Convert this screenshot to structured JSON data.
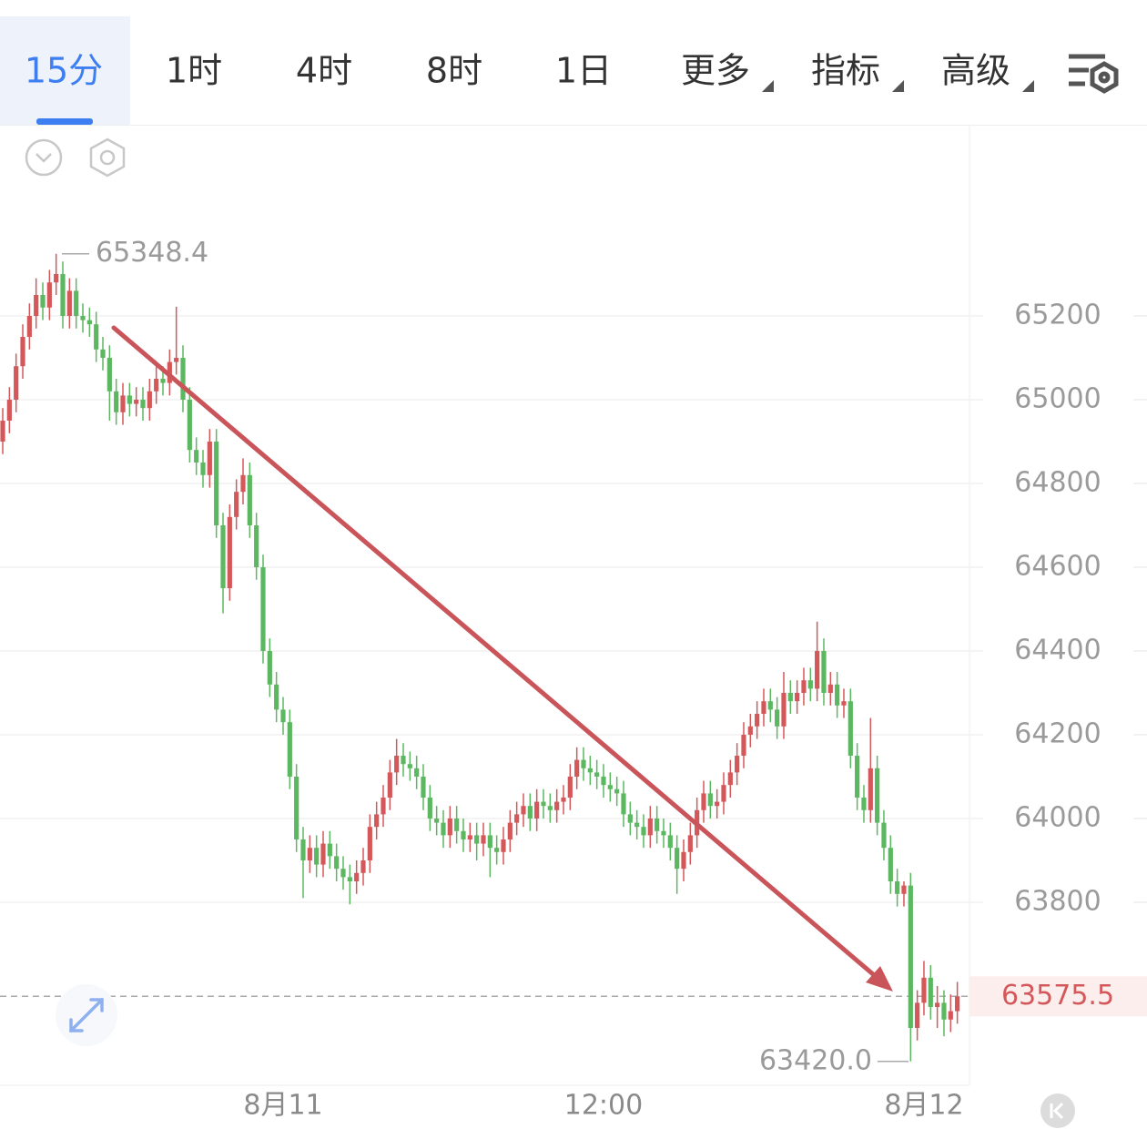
{
  "tabs": [
    "15分",
    "1时",
    "4时",
    "8时",
    "1日",
    "更多",
    "指标",
    "高级"
  ],
  "chart_data": {
    "type": "candlestick",
    "up_color": "#d4585a",
    "down_color": "#5cb860",
    "grid": true,
    "ylim": [
      63363,
      65650
    ],
    "yticks": [
      63800,
      64000,
      64200,
      64400,
      64600,
      64800,
      65000,
      65200
    ],
    "high_mark": 65348.4,
    "low_mark": {
      "value": 63420,
      "label": "63420.0"
    },
    "last_price": 63575.5,
    "categories": [
      null,
      null,
      null,
      null,
      null,
      null,
      null,
      null,
      null,
      null,
      null,
      null,
      null,
      null,
      null,
      null,
      null,
      null,
      null,
      null,
      null,
      null,
      null,
      null,
      null,
      null,
      null,
      null,
      null,
      null,
      null,
      null,
      null,
      null,
      null,
      null,
      null,
      null,
      null,
      null,
      null,
      null,
      "8月11",
      null,
      null,
      null,
      null,
      null,
      null,
      null,
      null,
      null,
      null,
      null,
      null,
      null,
      null,
      null,
      null,
      null,
      null,
      null,
      null,
      null,
      null,
      null,
      null,
      null,
      null,
      null,
      null,
      null,
      null,
      null,
      null,
      null,
      null,
      null,
      null,
      null,
      null,
      null,
      null,
      null,
      null,
      null,
      null,
      null,
      null,
      null,
      "12:00",
      null,
      null,
      null,
      null,
      null,
      null,
      null,
      null,
      null,
      null,
      null,
      null,
      null,
      null,
      null,
      null,
      null,
      null,
      null,
      null,
      null,
      null,
      null,
      null,
      null,
      null,
      null,
      null,
      null,
      null,
      null,
      null,
      null,
      null,
      null,
      null,
      null,
      null,
      null,
      null,
      null,
      null,
      null,
      null,
      null,
      null,
      null,
      "8月12",
      null,
      null,
      null,
      null,
      null
    ],
    "open": [
      64900,
      64950,
      65000,
      65080,
      65150,
      65200,
      65250,
      65220,
      65280,
      65300,
      65200,
      65260,
      65200,
      65190,
      65180,
      65120,
      65100,
      65020,
      64970,
      65010,
      64990,
      65000,
      64980,
      65020,
      65050,
      65040,
      65090,
      65100,
      65000,
      64880,
      64850,
      64820,
      64900,
      64700,
      64550,
      64720,
      64780,
      64820,
      64700,
      64600,
      64400,
      64320,
      64260,
      64230,
      64100,
      63950,
      63900,
      63930,
      63890,
      63940,
      63910,
      63880,
      63860,
      63850,
      63870,
      63900,
      63980,
      64010,
      64050,
      64110,
      64150,
      64130,
      64120,
      64100,
      64050,
      64000,
      63990,
      63960,
      64000,
      63970,
      63950,
      63960,
      63940,
      63960,
      63930,
      63920,
      63950,
      63990,
      64010,
      64030,
      64000,
      64040,
      64030,
      64020,
      64040,
      64050,
      64100,
      64140,
      64120,
      64110,
      64100,
      64080,
      64070,
      64060,
      64010,
      63990,
      63980,
      63960,
      64000,
      63970,
      63960,
      63930,
      63880,
      63920,
      63960,
      64020,
      64060,
      64030,
      64040,
      64080,
      64110,
      64150,
      64200,
      64220,
      64250,
      64280,
      64260,
      64220,
      64300,
      64280,
      64300,
      64330,
      64310,
      64400,
      64300,
      64320,
      64270,
      64280,
      64150,
      64050,
      64020,
      64120,
      63990,
      63930,
      63850,
      63820,
      63840,
      63500,
      63560,
      63620,
      63550,
      63560,
      63520,
      63540
    ],
    "high": [
      64980,
      65030,
      65110,
      65180,
      65230,
      65290,
      65280,
      65310,
      65348.4,
      65330,
      65290,
      65290,
      65230,
      65220,
      65210,
      65150,
      65130,
      65050,
      65040,
      65040,
      65030,
      65030,
      65050,
      65080,
      65080,
      65120,
      65222,
      65130,
      65030,
      64910,
      64880,
      64930,
      64930,
      64730,
      64750,
      64810,
      64860,
      64850,
      64730,
      64630,
      64430,
      64350,
      64290,
      64260,
      64130,
      63980,
      63960,
      63960,
      63970,
      63970,
      63940,
      63910,
      63890,
      63900,
      63930,
      64010,
      64040,
      64080,
      64140,
      64190,
      64180,
      64160,
      64150,
      64130,
      64080,
      64030,
      64020,
      64030,
      64030,
      64000,
      63990,
      63990,
      63990,
      63990,
      63960,
      63980,
      64020,
      64040,
      64060,
      64060,
      64070,
      64070,
      64060,
      64070,
      64080,
      64130,
      64170,
      64170,
      64150,
      64140,
      64130,
      64110,
      64100,
      64090,
      64040,
      64020,
      64010,
      64030,
      64030,
      64000,
      63990,
      63960,
      63950,
      63990,
      64050,
      64090,
      64090,
      64070,
      64110,
      64140,
      64180,
      64230,
      64250,
      64280,
      64310,
      64310,
      64290,
      64350,
      64330,
      64330,
      64360,
      64360,
      64470,
      64430,
      64350,
      64350,
      64310,
      64310,
      64180,
      64080,
      64240,
      64150,
      64020,
      63960,
      63880,
      63850,
      63870,
      63590,
      63660,
      63650,
      63600,
      63590,
      63580,
      63610
    ],
    "low": [
      64870,
      64920,
      64970,
      65050,
      65120,
      65170,
      65190,
      65190,
      65250,
      65170,
      65170,
      65170,
      65160,
      65150,
      65090,
      65070,
      64950,
      64940,
      64940,
      64960,
      64960,
      64950,
      64950,
      64990,
      65010,
      65010,
      65060,
      64970,
      64850,
      64820,
      64790,
      64790,
      64670,
      64490,
      64520,
      64690,
      64750,
      64670,
      64570,
      64370,
      64290,
      64230,
      64200,
      64070,
      63920,
      63810,
      63870,
      63860,
      63860,
      63880,
      63850,
      63830,
      63795,
      63820,
      63840,
      63870,
      63950,
      63980,
      64020,
      64080,
      64100,
      64090,
      64070,
      64020,
      63970,
      63960,
      63930,
      63930,
      63940,
      63920,
      63920,
      63900,
      63910,
      63860,
      63890,
      63890,
      63920,
      63960,
      63980,
      63970,
      63970,
      64000,
      63990,
      63990,
      64010,
      64020,
      64070,
      64090,
      64080,
      64070,
      64050,
      64040,
      64030,
      63980,
      63960,
      63950,
      63930,
      63930,
      63940,
      63930,
      63900,
      63820,
      63850,
      63890,
      63930,
      63990,
      64000,
      64000,
      64010,
      64050,
      64080,
      64120,
      64170,
      64190,
      64220,
      64230,
      64190,
      64190,
      64250,
      64250,
      64270,
      64280,
      64280,
      64270,
      64270,
      64240,
      64240,
      64120,
      64020,
      63990,
      63990,
      63960,
      63900,
      63820,
      63790,
      63790,
      63420,
      63470,
      63530,
      63520,
      63500,
      63480,
      63490,
      63510
    ],
    "close": [
      64950,
      65000,
      65080,
      65150,
      65200,
      65250,
      65220,
      65280,
      65300,
      65200,
      65260,
      65200,
      65190,
      65180,
      65120,
      65100,
      65020,
      64970,
      65010,
      64990,
      65000,
      64980,
      65020,
      65050,
      65040,
      65090,
      65100,
      65000,
      64880,
      64850,
      64820,
      64900,
      64700,
      64550,
      64720,
      64780,
      64820,
      64700,
      64600,
      64400,
      64320,
      64260,
      64230,
      64100,
      63950,
      63900,
      63930,
      63890,
      63940,
      63910,
      63880,
      63860,
      63850,
      63870,
      63900,
      63980,
      64010,
      64050,
      64110,
      64150,
      64130,
      64120,
      64100,
      64050,
      64000,
      63990,
      63960,
      64000,
      63970,
      63950,
      63960,
      63940,
      63960,
      63930,
      63920,
      63950,
      63990,
      64010,
      64030,
      64000,
      64040,
      64030,
      64020,
      64040,
      64050,
      64100,
      64140,
      64120,
      64110,
      64100,
      64080,
      64070,
      64060,
      64010,
      63990,
      63980,
      63960,
      64000,
      63970,
      63960,
      63930,
      63880,
      63920,
      63960,
      64020,
      64060,
      64030,
      64040,
      64080,
      64110,
      64150,
      64200,
      64220,
      64250,
      64280,
      64260,
      64220,
      64300,
      64280,
      64300,
      64330,
      64310,
      64400,
      64300,
      64320,
      64270,
      64280,
      64150,
      64050,
      64020,
      64120,
      63990,
      63930,
      63850,
      63820,
      63840,
      63500,
      63560,
      63620,
      63550,
      63560,
      63520,
      63540,
      63575.5
    ]
  }
}
